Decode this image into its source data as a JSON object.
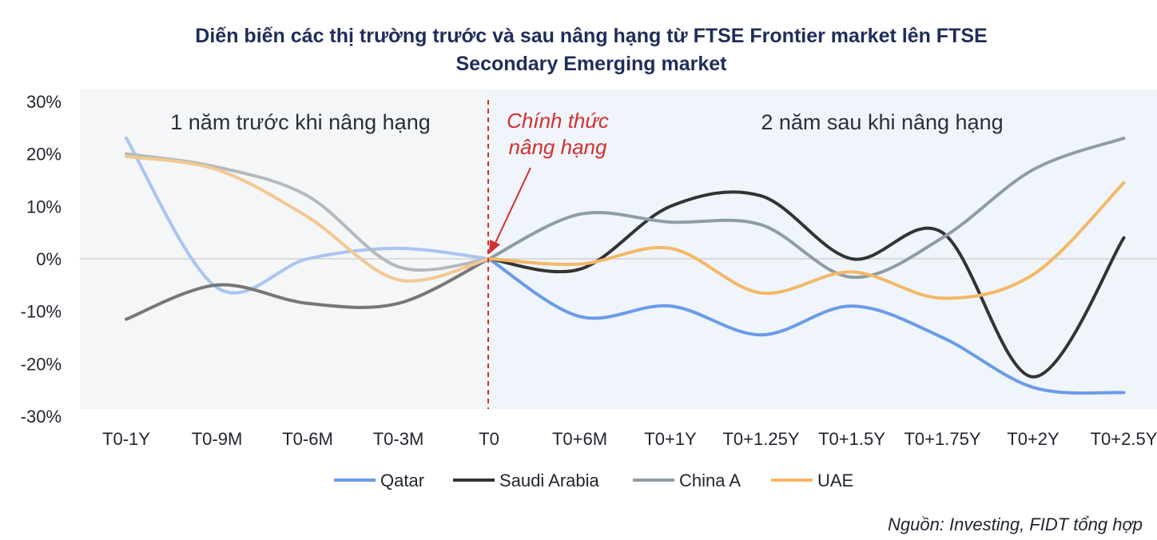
{
  "chart_data": {
    "type": "line",
    "title_line1": "Diến biến các thị trường trước và sau nâng hạng từ FTSE Frontier market  lên FTSE",
    "title_line2": "Secondary Emerging market",
    "categories": [
      "T0-1Y",
      "T0-9M",
      "T0-6M",
      "T0-3M",
      "T0",
      "T0+6M",
      "T0+1Y",
      "T0+1.25Y",
      "T0+1.5Y",
      "T0+1.75Y",
      "T0+2Y",
      "T0+2.5Y"
    ],
    "ylim": [
      -30,
      30
    ],
    "yticks": [
      30,
      20,
      10,
      0,
      -10,
      -20,
      -30
    ],
    "ytick_labels": [
      "30%",
      "20%",
      "10%",
      "0%",
      "-10%",
      "-20%",
      "-30%"
    ],
    "series": [
      {
        "name": "Qatar",
        "color": "#6b9be8",
        "before_color": "#a9c4ef",
        "values": [
          23,
          -5.5,
          0,
          2,
          0,
          -11,
          -9,
          -14.5,
          -9,
          -15,
          -24.5,
          -25.5
        ]
      },
      {
        "name": "Saudi Arabia",
        "color": "#333333",
        "before_color": "#777777",
        "values": [
          -11.5,
          -5,
          -8.5,
          -8.5,
          0,
          -2,
          10,
          12,
          0,
          5,
          -22.5,
          4
        ]
      },
      {
        "name": "China A",
        "color": "#8f9ca6",
        "before_color": "#b4b9bd",
        "values": [
          20,
          17.5,
          12,
          -1.5,
          0,
          8.5,
          7,
          6.5,
          -3.5,
          4,
          17,
          23
        ]
      },
      {
        "name": "UAE",
        "color": "#f3b867",
        "before_color": "#f3c890",
        "values": [
          19.5,
          17,
          8,
          -4,
          0,
          -1,
          2,
          -6.5,
          -2.5,
          -7.5,
          -3,
          14.5
        ]
      }
    ],
    "region_before_label": "1 năm trước khi nâng hạng",
    "region_after_label": "2 năm sau khi nâng hạng",
    "annotation_line1": "Chính thức",
    "annotation_line2": "nâng hạng",
    "source": "Nguồn: Investing, FIDT tổng hợp",
    "colors": {
      "panel_before": "#f4f6f8",
      "panel_after": "#f0f5fb",
      "divider": "#d32f2f",
      "zero_line": "#d0d0d0"
    }
  }
}
